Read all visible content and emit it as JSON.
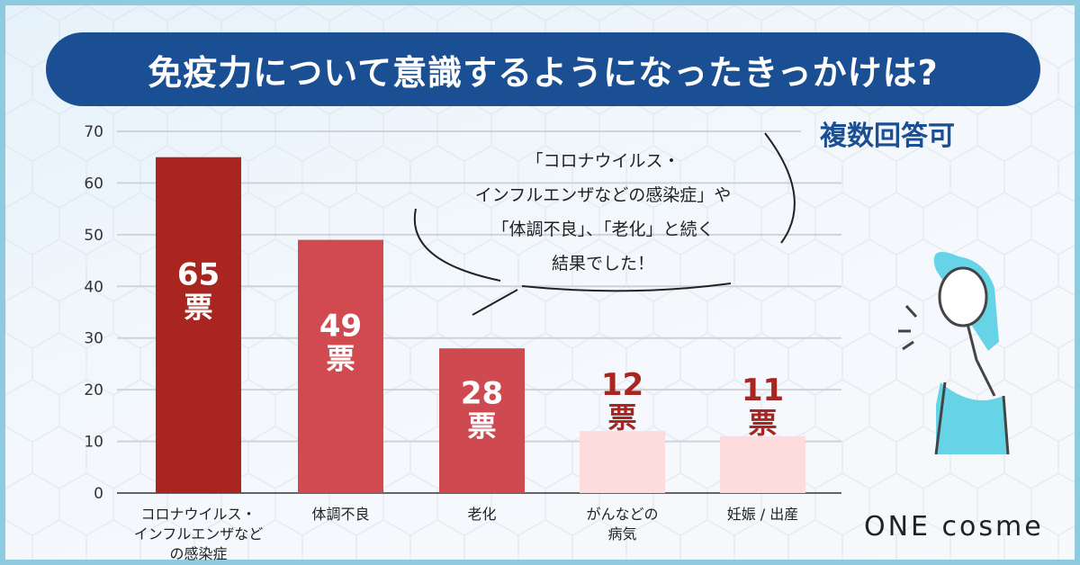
{
  "title": "免疫力について意識するようになったきっかけは?",
  "note": "複数回答可",
  "bubble_lines": [
    "「コロナウイルス・",
    "インフルエンザなどの感染症」や",
    "「体調不良」、「老化」と続く",
    "結果でした！"
  ],
  "logo": "ONE cosme",
  "chart_data": {
    "type": "bar",
    "title": "免疫力について意識するようになったきっかけは?",
    "categories": [
      [
        "コロナウイルス・",
        "インフルエンザなど",
        "の感染症"
      ],
      [
        "体調不良"
      ],
      [
        "老化"
      ],
      [
        "がんなどの",
        "病気"
      ],
      [
        "妊娠 / 出産"
      ]
    ],
    "values": [
      65,
      49,
      28,
      12,
      11
    ],
    "value_labels": [
      "65",
      "49",
      "28",
      "12",
      "11"
    ],
    "unit": "票",
    "ylim": [
      0,
      70
    ],
    "yticks": [
      0,
      10,
      20,
      30,
      40,
      50,
      60,
      70
    ],
    "grid": true,
    "colors": [
      "#a8261f",
      "#d04a4f",
      "#cf4a50",
      "#fcdcdc",
      "#fcdcdc"
    ],
    "label_color_dark": "#a8261f"
  }
}
